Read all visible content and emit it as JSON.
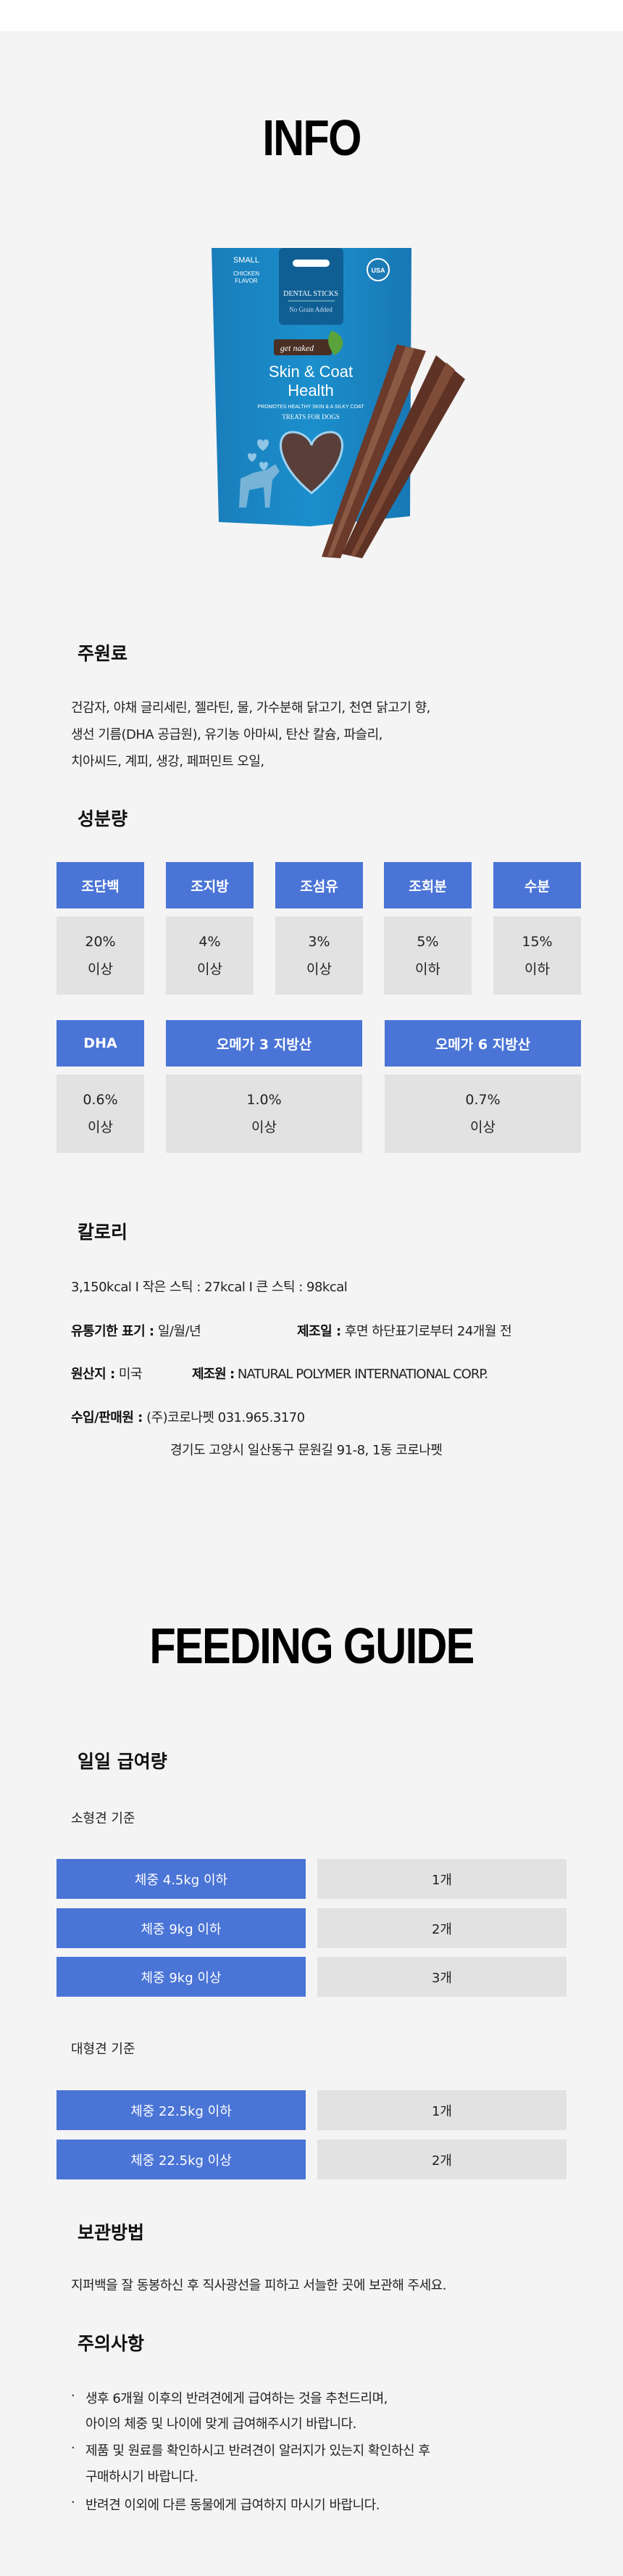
{
  "colors": {
    "accent_blue": "#4a74d6",
    "value_gray": "#e2e2e2",
    "background": "#f4f4f4"
  },
  "info_title": "INFO",
  "product_image": {
    "alt_lettering": [
      "SMALL",
      "CHICKEN",
      "FLAVOR",
      "DENTAL STICKS",
      "No Grain Added",
      "get naked",
      "USA",
      "Skin & Coat",
      "Health",
      "PROMOTES HEALTHY SKIN & A SILKY COAT",
      "TREATS FOR DOGS"
    ]
  },
  "ingredients": {
    "title": "주원료",
    "lines": [
      "건감자, 야채 글리세린, 젤라틴, 물, 가수분해 닭고기, 천연 닭고기 향,",
      "생선 기름(DHA 공급원), 유기농 아마씨, 탄산 칼슘, 파슬리,",
      "치아씨드, 계피, 생강, 페퍼민트 오일,"
    ]
  },
  "nutrition": {
    "title": "성분량",
    "row1": [
      {
        "label": "조단백",
        "value": "20%",
        "qualifier": "이상"
      },
      {
        "label": "조지방",
        "value": "4%",
        "qualifier": "이상"
      },
      {
        "label": "조섬유",
        "value": "3%",
        "qualifier": "이상"
      },
      {
        "label": "조회분",
        "value": "5%",
        "qualifier": "이하"
      },
      {
        "label": "수분",
        "value": "15%",
        "qualifier": "이하"
      }
    ],
    "row2": [
      {
        "label": "DHA",
        "value": "0.6%",
        "qualifier": "이상"
      },
      {
        "label": "오메가 3 지방산",
        "value": "1.0%",
        "qualifier": "이상"
      },
      {
        "label": "오메가 6 지방산",
        "value": "0.7%",
        "qualifier": "이상"
      }
    ]
  },
  "calories": {
    "title": "칼로리",
    "text": "3,150kcal I 작은 스틱 : 27kcal I 큰 스틱 : 98kcal",
    "expiry_label": "유통기한 표기 :",
    "expiry_value": "일/월/년",
    "mfg_date_label": "제조일 :",
    "mfg_date_value": "후면 하단표기로부터 24개월 전",
    "origin_label": "원산지 :",
    "origin_value": "미국",
    "manufacturer_label": "제조원 :",
    "manufacturer_value": "NATURAL POLYMER INTERNATIONAL CORP.",
    "importer_label": "수입/판매원 :",
    "importer_value": "(주)코로나펫 031.965.3170",
    "importer_address": "경기도 고양시 일산동구 문원길 91-8, 1동 코로나펫"
  },
  "feeding_title": "FEEDING GUIDE",
  "daily_amount": {
    "title": "일일 급여량",
    "small_label": "소형견 기준",
    "small_rows": [
      {
        "weight": "체중 4.5kg 이하",
        "amount": "1개"
      },
      {
        "weight": "체중 9kg 이하",
        "amount": "2개"
      },
      {
        "weight": "체중 9kg 이상",
        "amount": "3개"
      }
    ],
    "large_label": "대형견 기준",
    "large_rows": [
      {
        "weight": "체중 22.5kg 이하",
        "amount": "1개"
      },
      {
        "weight": "체중 22.5kg 이상",
        "amount": "2개"
      }
    ]
  },
  "storage": {
    "title": "보관방법",
    "text": "지퍼백을 잘 동봉하신 후 직사광선을 피하고 서늘한 곳에 보관해 주세요."
  },
  "cautions": {
    "title": "주의사항",
    "bullet": "·",
    "items": [
      [
        "생후 6개월 이후의 반려견에게 급여하는 것을 추천드리며,",
        "아이의 체중 및 나이에 맞게 급여해주시기 바랍니다."
      ],
      [
        "제품 및 원료를 확인하시고 반려견이 알러지가 있는지 확인하신 후",
        "구매하시기 바랍니다."
      ],
      [
        "반려견 이외에 다른 동물에게 급여하지 마시기 바랍니다."
      ]
    ]
  }
}
